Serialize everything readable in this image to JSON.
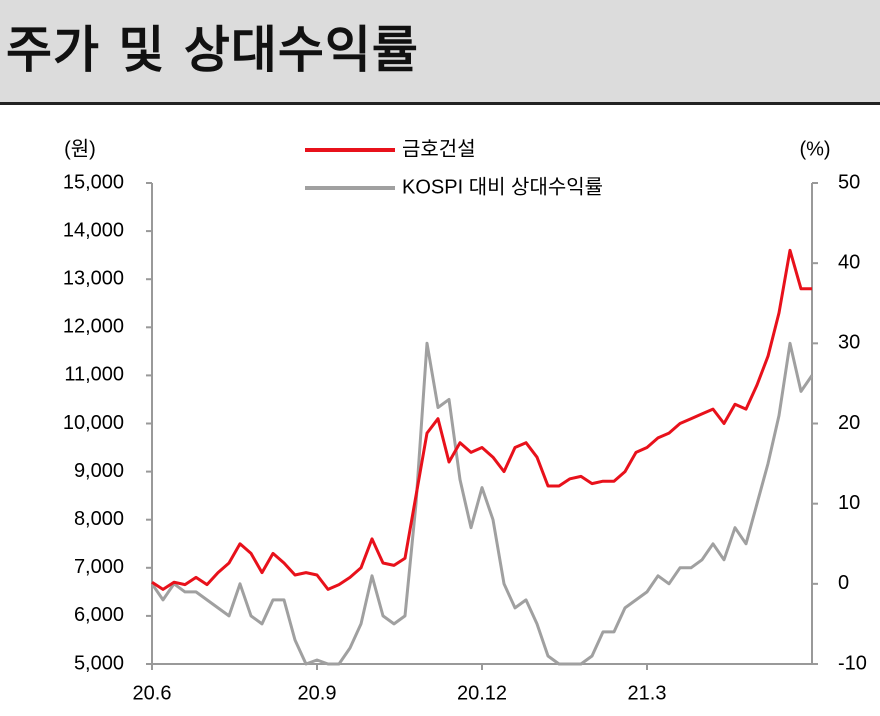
{
  "chart_data": {
    "type": "line",
    "title": "주가 및 상대수익률",
    "y_label": "(원)",
    "y2_label": "(%)",
    "categories": [
      "20.6",
      null,
      null,
      null,
      null,
      null,
      null,
      null,
      null,
      null,
      null,
      null,
      null,
      null,
      null,
      "20.9",
      null,
      null,
      null,
      null,
      null,
      null,
      null,
      null,
      null,
      null,
      null,
      null,
      null,
      null,
      "20.12",
      null,
      null,
      null,
      null,
      null,
      null,
      null,
      null,
      null,
      null,
      null,
      null,
      null,
      null,
      "21.3",
      null,
      null,
      null,
      null,
      null,
      null,
      null,
      null,
      null,
      null,
      null,
      null,
      null,
      null,
      null
    ],
    "series": [
      {
        "name": "금호건설",
        "color": "#e8111b",
        "axis": "y",
        "values": [
          6700,
          6550,
          6700,
          6650,
          6800,
          6650,
          6900,
          7100,
          7500,
          7300,
          6900,
          7300,
          7100,
          6850,
          6900,
          6850,
          6550,
          6650,
          6800,
          7000,
          7600,
          7100,
          7050,
          7200,
          8500,
          9800,
          10100,
          9200,
          9600,
          9400,
          9500,
          9300,
          9000,
          9500,
          9600,
          9300,
          8700,
          8700,
          8850,
          8900,
          8750,
          8800,
          8800,
          9000,
          9400,
          9500,
          9700,
          9800,
          10000,
          10100,
          10200,
          10300,
          10000,
          10400,
          10300,
          10800,
          11400,
          12300,
          13600,
          12800,
          12800
        ]
      },
      {
        "name": "KOSPI 대비 상대수익률",
        "color": "#a0a0a0",
        "axis": "y2",
        "values": [
          0,
          -2,
          0,
          -1,
          -1,
          -2,
          -3,
          -4,
          0,
          -4,
          -5,
          -2,
          -2,
          -7,
          -10,
          -9.5,
          -10,
          -10,
          -8,
          -5,
          1,
          -4,
          -5,
          -4,
          10,
          30,
          22,
          23,
          13,
          7,
          12,
          8,
          0,
          -3,
          -2,
          -5,
          -9,
          -10,
          -10,
          -10,
          -9,
          -6,
          -6,
          -3,
          -2,
          -1,
          1,
          0,
          2,
          2,
          3,
          5,
          3,
          7,
          5,
          10,
          15,
          21,
          30,
          24,
          26
        ]
      }
    ],
    "ylim": [
      5000,
      15000
    ],
    "yticks": [
      {
        "value": 5000,
        "label": "5,000"
      },
      {
        "value": 6000,
        "label": "6,000"
      },
      {
        "value": 7000,
        "label": "7,000"
      },
      {
        "value": 8000,
        "label": "8,000"
      },
      {
        "value": 9000,
        "label": "9,000"
      },
      {
        "value": 10000,
        "label": "10,000"
      },
      {
        "value": 11000,
        "label": "11,000"
      },
      {
        "value": 12000,
        "label": "12,000"
      },
      {
        "value": 13000,
        "label": "13,000"
      },
      {
        "value": 14000,
        "label": "14,000"
      },
      {
        "value": 15000,
        "label": "15,000"
      }
    ],
    "y2lim": [
      -10,
      50
    ],
    "y2ticks": [
      -10,
      0,
      10,
      20,
      30,
      40,
      50
    ]
  }
}
